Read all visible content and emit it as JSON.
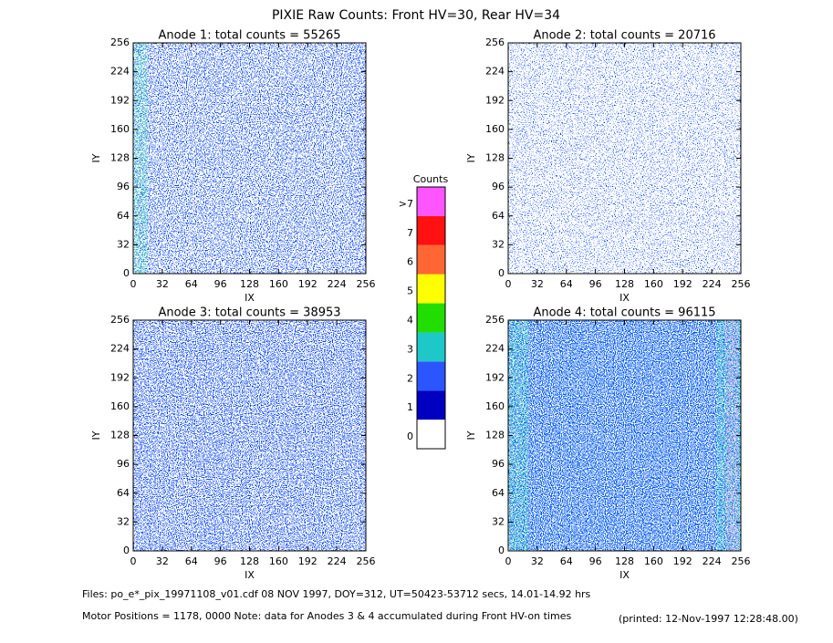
{
  "title": "PIXIE Raw Counts:  Front HV=30, Rear HV=34",
  "chart_data": [
    {
      "type": "heatmap",
      "title": "Anode 1: total counts = 55265",
      "xlabel": "IX",
      "ylabel": "IY",
      "xlim": [
        0,
        256
      ],
      "ylim": [
        0,
        256
      ],
      "xticks": [
        0,
        32,
        64,
        96,
        128,
        160,
        192,
        224,
        256
      ],
      "yticks": [
        0,
        32,
        64,
        96,
        128,
        160,
        192,
        224,
        256
      ]
    },
    {
      "type": "heatmap",
      "title": "Anode 2: total counts = 20716",
      "xlabel": "IX",
      "ylabel": "IY",
      "xlim": [
        0,
        256
      ],
      "ylim": [
        0,
        256
      ],
      "xticks": [
        0,
        32,
        64,
        96,
        128,
        160,
        192,
        224,
        256
      ],
      "yticks": [
        0,
        32,
        64,
        96,
        128,
        160,
        192,
        224,
        256
      ]
    },
    {
      "type": "heatmap",
      "title": "Anode 3: total counts = 38953",
      "xlabel": "IX",
      "ylabel": "IY",
      "xlim": [
        0,
        256
      ],
      "ylim": [
        0,
        256
      ],
      "xticks": [
        0,
        32,
        64,
        96,
        128,
        160,
        192,
        224,
        256
      ],
      "yticks": [
        0,
        32,
        64,
        96,
        128,
        160,
        192,
        224,
        256
      ]
    },
    {
      "type": "heatmap",
      "title": "Anode 4: total counts = 96115",
      "xlabel": "IX",
      "ylabel": "IY",
      "xlim": [
        0,
        256
      ],
      "ylim": [
        0,
        256
      ],
      "xticks": [
        0,
        32,
        64,
        96,
        128,
        160,
        192,
        224,
        256
      ],
      "yticks": [
        0,
        32,
        64,
        96,
        128,
        160,
        192,
        224,
        256
      ]
    }
  ],
  "colorbar": {
    "title": "Counts",
    "ticks": [
      0,
      1,
      2,
      3,
      4,
      5,
      6,
      7,
      {
        "value": 8,
        "label": ">7"
      }
    ],
    "colors": [
      "#ffffff",
      "#0000c0",
      "#2a55ff",
      "#1ec8c8",
      "#22dd00",
      "#ffff00",
      "#ff6633",
      "#ff1111",
      "#ff55ff"
    ]
  },
  "footer": {
    "files": "Files: po_e*_pix_19971108_v01.cdf    08 NOV 1997, DOY=312, UT=50423-53712 secs, 14.01-14.92 hrs",
    "motor": "Motor Positions = 1178, 0000   Note: data for Anodes 3 & 4 accumulated during Front HV-on times",
    "printed": "(printed: 12-Nov-1997 12:28:48.00)"
  }
}
